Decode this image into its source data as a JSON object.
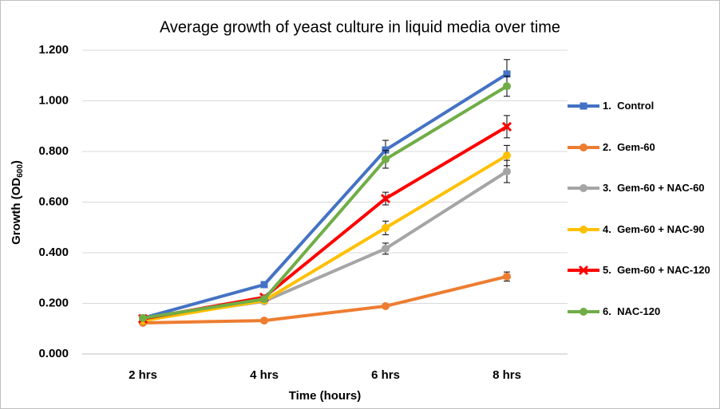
{
  "chart_data": {
    "type": "line",
    "title": "Average growth of yeast culture in liquid media over time",
    "xlabel": "Time (hours)",
    "ylabel_parts": [
      "Growth (OD",
      "600",
      ")"
    ],
    "categories": [
      "2 hrs",
      "4 hrs",
      "6 hrs",
      "8 hrs"
    ],
    "ylim": [
      0,
      1.2
    ],
    "yticks": [
      {
        "value": 0,
        "label": "0.000"
      },
      {
        "value": 0.2,
        "label": "0.200"
      },
      {
        "value": 0.4,
        "label": "0.400"
      },
      {
        "value": 0.6,
        "label": "0.600"
      },
      {
        "value": 0.8,
        "label": "0.800"
      },
      {
        "value": 1.0,
        "label": "1.000"
      },
      {
        "value": 1.2,
        "label": "1.200"
      }
    ],
    "grid": true,
    "legend": "right",
    "series": [
      {
        "name": "1.  Control",
        "color": "#4472c4",
        "marker": "square",
        "values": [
          0.142,
          0.274,
          0.806,
          1.106
        ],
        "errors": [
          0.008,
          0.01,
          0.038,
          0.057
        ]
      },
      {
        "name": "2.  Gem-60",
        "color": "#ed7d31",
        "marker": "circle",
        "values": [
          0.123,
          0.132,
          0.189,
          0.306
        ],
        "errors": [
          0.005,
          0.006,
          0.008,
          0.018
        ]
      },
      {
        "name": "3.  Gem-60 + NAC-60",
        "color": "#a5a5a5",
        "marker": "circle",
        "values": [
          0.139,
          0.208,
          0.416,
          0.721
        ],
        "errors": [
          0.006,
          0.008,
          0.022,
          0.044
        ]
      },
      {
        "name": "4.  Gem-60 + NAC-90",
        "color": "#ffc000",
        "marker": "circle",
        "values": [
          0.132,
          0.211,
          0.498,
          0.784
        ],
        "errors": [
          0.006,
          0.008,
          0.027,
          0.04
        ]
      },
      {
        "name": "5.  Gem-60 + NAC-120",
        "color": "#ff0000",
        "marker": "x",
        "values": [
          0.139,
          0.224,
          0.614,
          0.898
        ],
        "errors": [
          0.006,
          0.009,
          0.025,
          0.044
        ]
      },
      {
        "name": "6.  NAC-120",
        "color": "#70ad47",
        "marker": "circle",
        "values": [
          0.142,
          0.217,
          0.769,
          1.058
        ],
        "errors": [
          0.006,
          0.009,
          0.035,
          0.04
        ]
      }
    ]
  }
}
